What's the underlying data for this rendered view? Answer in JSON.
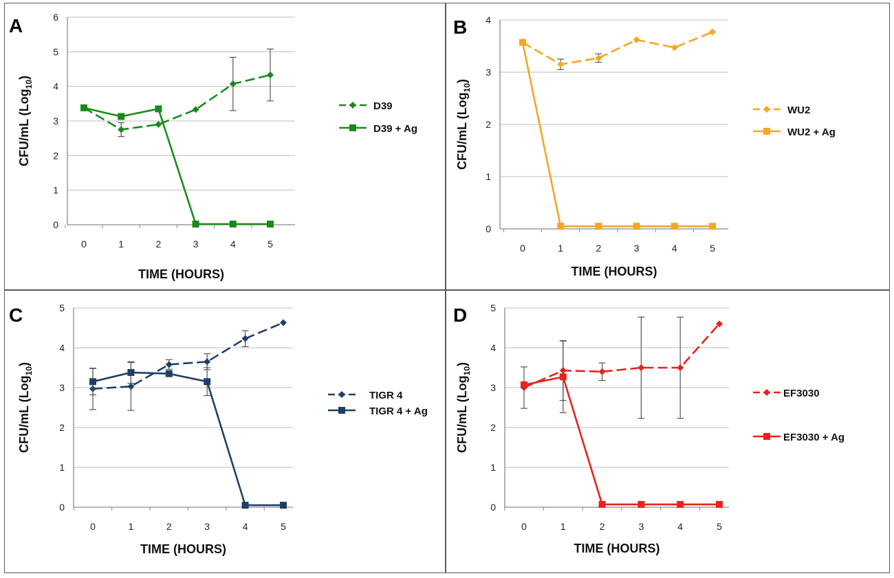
{
  "chart_data": [
    {
      "type": "line",
      "panel_label": "A",
      "xlabel": "TIME (HOURS)",
      "ylabel_main": "CFU/mL (Log",
      "ylabel_sub": "10",
      "ylabel_close": ")",
      "x": [
        0,
        1,
        2,
        3,
        4,
        5
      ],
      "xticks": [
        "0",
        "1",
        "2",
        "3",
        "4",
        "5"
      ],
      "ylim": [
        0,
        6
      ],
      "yticks": [
        "0",
        "1",
        "2",
        "3",
        "4",
        "5",
        "6"
      ],
      "color": "#1a8a1a",
      "legend_spacing": "normal",
      "series": [
        {
          "name": "D39",
          "marker": "diamond",
          "dashed": true,
          "values": [
            3.38,
            2.75,
            2.9,
            3.33,
            4.07,
            4.33
          ],
          "errors": [
            0,
            0.2,
            0,
            0,
            0.77,
            0.75
          ]
        },
        {
          "name": "D39 + Ag",
          "marker": "square",
          "dashed": false,
          "values": [
            3.38,
            3.13,
            3.35,
            0.02,
            0.02,
            0.02
          ],
          "errors": [
            0,
            0,
            0,
            0,
            0,
            0
          ]
        }
      ]
    },
    {
      "type": "line",
      "panel_label": "B",
      "xlabel": "TIME (HOURS)",
      "ylabel_main": "CFU/mL (Log",
      "ylabel_sub": "10",
      "ylabel_close": ")",
      "x": [
        0,
        1,
        2,
        3,
        4,
        5
      ],
      "xticks": [
        "0",
        "1",
        "2",
        "3",
        "4",
        "5"
      ],
      "ylim": [
        0,
        4
      ],
      "yticks": [
        "0",
        "1",
        "2",
        "3",
        "4"
      ],
      "color": "#f5a623",
      "legend_spacing": "normal",
      "series": [
        {
          "name": "WU2",
          "marker": "diamond",
          "dashed": true,
          "values": [
            3.57,
            3.15,
            3.27,
            3.62,
            3.47,
            3.77
          ],
          "errors": [
            0,
            0.1,
            0.08,
            0,
            0,
            0
          ]
        },
        {
          "name": "WU2 + Ag",
          "marker": "square",
          "dashed": false,
          "values": [
            3.57,
            0.05,
            0.05,
            0.05,
            0.05,
            0.05
          ],
          "errors": [
            0,
            0,
            0,
            0,
            0,
            0
          ]
        }
      ]
    },
    {
      "type": "line",
      "panel_label": "C",
      "xlabel": "TIME (HOURS)",
      "ylabel_main": "CFU/mL (Log",
      "ylabel_sub": "10",
      "ylabel_close": ")",
      "x": [
        0,
        1,
        2,
        3,
        4,
        5
      ],
      "xticks": [
        "0",
        "1",
        "2",
        "3",
        "4",
        "5"
      ],
      "ylim": [
        0,
        5
      ],
      "yticks": [
        "0",
        "1",
        "2",
        "3",
        "4",
        "5"
      ],
      "color": "#1f3f66",
      "legend_spacing": "tight",
      "series": [
        {
          "name": "TIGR 4",
          "marker": "diamond",
          "dashed": true,
          "values": [
            2.97,
            3.03,
            3.58,
            3.65,
            4.23,
            4.63
          ],
          "errors": [
            0.52,
            0.6,
            0.12,
            0.2,
            0.2,
            0
          ]
        },
        {
          "name": "TIGR 4 + Ag",
          "marker": "square",
          "dashed": false,
          "values": [
            3.15,
            3.38,
            3.35,
            3.15,
            0.05,
            0.05
          ],
          "errors": [
            0.33,
            0.27,
            0,
            0.35,
            0,
            0
          ]
        }
      ]
    },
    {
      "type": "line",
      "panel_label": "D",
      "xlabel": "TIME (HOURS)",
      "ylabel_main": "CFU/mL (Log",
      "ylabel_sub": "10",
      "ylabel_close": ")",
      "x": [
        0,
        1,
        2,
        3,
        4,
        5
      ],
      "xticks": [
        "0",
        "1",
        "2",
        "3",
        "4",
        "5"
      ],
      "ylim": [
        0,
        5
      ],
      "yticks": [
        "0",
        "1",
        "2",
        "3",
        "4",
        "5"
      ],
      "color": "#e8221c",
      "legend_spacing": "wide",
      "series": [
        {
          "name": "EF3030",
          "marker": "diamond",
          "dashed": true,
          "values": [
            3.0,
            3.43,
            3.4,
            3.5,
            3.5,
            4.6
          ],
          "errors": [
            0.52,
            0.75,
            0.22,
            1.27,
            1.27,
            0
          ]
        },
        {
          "name": "EF3030 + Ag",
          "marker": "square",
          "dashed": false,
          "values": [
            3.07,
            3.27,
            0.07,
            0.07,
            0.07,
            0.07
          ],
          "errors": [
            0,
            0.9,
            0,
            0,
            0,
            0
          ]
        }
      ]
    }
  ]
}
